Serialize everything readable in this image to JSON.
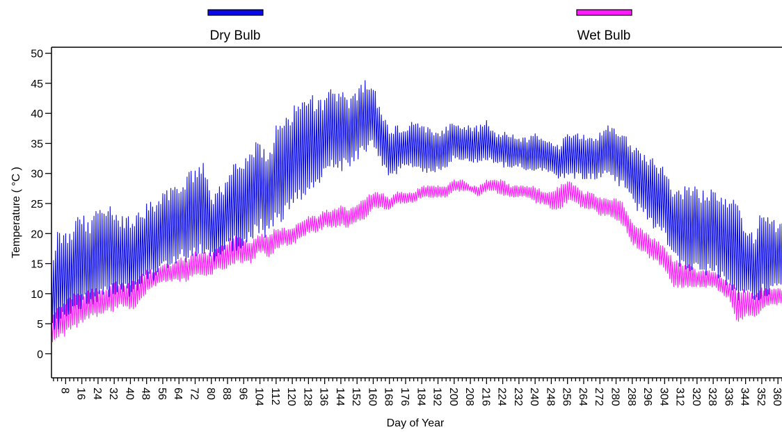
{
  "chart_data": {
    "type": "line",
    "xlabel": "Day of Year",
    "ylabel": "Temperature ( °C )",
    "xlim": [
      1,
      362
    ],
    "ylim": [
      -4,
      51
    ],
    "xticks": [
      8,
      16,
      24,
      32,
      40,
      48,
      56,
      64,
      72,
      80,
      88,
      96,
      104,
      112,
      120,
      128,
      136,
      144,
      152,
      160,
      168,
      176,
      184,
      192,
      200,
      208,
      216,
      224,
      232,
      240,
      248,
      256,
      264,
      272,
      280,
      288,
      296,
      304,
      312,
      320,
      328,
      336,
      344,
      352,
      360
    ],
    "yticks": [
      0,
      5,
      10,
      15,
      20,
      25,
      30,
      35,
      40,
      45,
      50
    ],
    "legend_position": "top",
    "series": [
      {
        "name": "Dry Bulb",
        "color": "#0a0ae6",
        "envelope": {
          "days": [
            1,
            4,
            8,
            12,
            16,
            20,
            24,
            28,
            32,
            36,
            40,
            44,
            48,
            52,
            56,
            60,
            64,
            68,
            72,
            76,
            80,
            84,
            88,
            92,
            96,
            100,
            104,
            108,
            112,
            116,
            120,
            124,
            128,
            132,
            136,
            140,
            144,
            148,
            152,
            156,
            160,
            164,
            168,
            172,
            176,
            180,
            184,
            188,
            192,
            196,
            200,
            204,
            208,
            212,
            216,
            220,
            224,
            228,
            232,
            236,
            240,
            244,
            248,
            252,
            256,
            260,
            264,
            268,
            272,
            276,
            280,
            284,
            288,
            292,
            296,
            300,
            304,
            308,
            312,
            316,
            320,
            324,
            328,
            332,
            336,
            340,
            344,
            348,
            352,
            356,
            360,
            362
          ],
          "max": [
            16,
            21,
            20,
            22,
            24,
            22,
            25,
            25,
            24,
            23,
            23,
            24,
            25,
            26,
            27,
            28,
            29,
            30,
            31,
            32,
            26,
            28,
            29,
            34,
            32,
            35,
            36,
            33,
            38,
            40,
            41,
            43,
            44,
            42,
            43,
            45,
            44,
            42,
            44,
            46,
            45,
            40,
            38,
            38,
            38,
            39,
            38,
            38,
            37,
            38,
            39,
            38,
            38,
            38,
            39,
            37,
            37,
            37,
            36,
            36,
            37,
            36,
            35,
            35,
            37,
            37,
            37,
            36,
            37,
            38,
            38,
            37,
            35,
            34,
            33,
            32,
            31,
            28,
            27,
            29,
            28,
            27,
            28,
            26,
            27,
            25,
            22,
            20,
            24,
            23,
            22,
            22
          ],
          "min": [
            3,
            4,
            5,
            6,
            7,
            8,
            8,
            9,
            9,
            10,
            9,
            10,
            11,
            12,
            13,
            14,
            15,
            15,
            16,
            16,
            15,
            16,
            17,
            17,
            17,
            19,
            20,
            19,
            21,
            22,
            24,
            25,
            27,
            28,
            29,
            30,
            30,
            31,
            32,
            33,
            34,
            31,
            29,
            30,
            31,
            31,
            30,
            30,
            30,
            31,
            32,
            32,
            32,
            31,
            32,
            31,
            31,
            31,
            31,
            30,
            30,
            30,
            30,
            29,
            29,
            29,
            29,
            29,
            29,
            30,
            28,
            27,
            25,
            23,
            22,
            20,
            19,
            15,
            14,
            13,
            13,
            13,
            13,
            12,
            11,
            8,
            9,
            8,
            9,
            10,
            10,
            10
          ]
        }
      },
      {
        "name": "Wet Bulb",
        "color": "#ff1aff",
        "envelope": {
          "days": [
            1,
            4,
            8,
            12,
            16,
            20,
            24,
            28,
            32,
            36,
            40,
            44,
            48,
            52,
            56,
            60,
            64,
            68,
            72,
            76,
            80,
            84,
            88,
            92,
            96,
            100,
            104,
            108,
            112,
            116,
            120,
            124,
            128,
            132,
            136,
            140,
            144,
            148,
            152,
            156,
            160,
            164,
            168,
            172,
            176,
            180,
            184,
            188,
            192,
            196,
            200,
            204,
            208,
            212,
            216,
            220,
            224,
            228,
            232,
            236,
            240,
            244,
            248,
            252,
            256,
            260,
            264,
            268,
            272,
            276,
            280,
            284,
            288,
            292,
            296,
            300,
            304,
            308,
            312,
            316,
            320,
            324,
            328,
            332,
            336,
            340,
            344,
            348,
            352,
            356,
            360,
            362
          ],
          "max": [
            6,
            8,
            9,
            10,
            10,
            11,
            11,
            11,
            12,
            12,
            12,
            13,
            14,
            14,
            15,
            15,
            16,
            16,
            17,
            17,
            17,
            18,
            19,
            20,
            19,
            19,
            20,
            20,
            21,
            21,
            21,
            22,
            23,
            23,
            24,
            24,
            25,
            24,
            25,
            26,
            27,
            27,
            26,
            27,
            27,
            27,
            28,
            28,
            28,
            28,
            29,
            29,
            28,
            28,
            29,
            29,
            29,
            28,
            28,
            28,
            28,
            27,
            27,
            28,
            29,
            28,
            27,
            27,
            26,
            26,
            26,
            25,
            22,
            21,
            20,
            19,
            18,
            16,
            15,
            15,
            14,
            14,
            14,
            13,
            12,
            11,
            11,
            10,
            11,
            11,
            11,
            11
          ],
          "min": [
            1,
            2,
            3,
            4,
            5,
            6,
            6,
            7,
            7,
            8,
            7,
            8,
            10,
            11,
            12,
            12,
            12,
            12,
            13,
            13,
            13,
            14,
            14,
            15,
            15,
            15,
            17,
            16,
            17,
            18,
            18,
            19,
            20,
            20,
            21,
            21,
            21,
            21,
            22,
            22,
            24,
            24,
            24,
            25,
            25,
            25,
            26,
            26,
            26,
            26,
            27,
            27,
            27,
            26,
            27,
            27,
            26,
            26,
            26,
            26,
            25,
            25,
            24,
            24,
            25,
            25,
            24,
            24,
            23,
            23,
            22,
            21,
            18,
            17,
            16,
            15,
            14,
            11,
            11,
            11,
            11,
            11,
            11,
            10,
            9,
            5,
            6,
            6,
            7,
            8,
            8,
            8
          ]
        }
      }
    ]
  }
}
